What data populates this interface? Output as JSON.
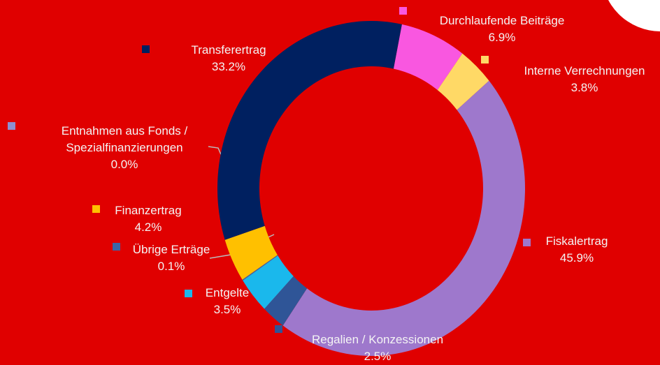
{
  "chart_data": {
    "type": "donut",
    "categories": [
      "Durchlaufende Beiträge",
      "Interne Verrechnungen",
      "Fiskalertrag",
      "Regalien / Konzessionen",
      "Entgelte",
      "Übrige Erträge",
      "Finanzertrag",
      "Entnahmen aus Fonds / Spezialfinanzierungen",
      "Transferertrag"
    ],
    "values": [
      6.9,
      3.8,
      45.9,
      2.5,
      3.5,
      0.1,
      4.2,
      0.0,
      33.2
    ],
    "value_labels": [
      "6.9%",
      "3.8%",
      "45.9%",
      "2.5%",
      "3.5%",
      "0.1%",
      "4.2%",
      "0.0%",
      "33.2%"
    ],
    "colors": [
      "#f957e0",
      "#ffd966",
      "#9e78cc",
      "#2f5597",
      "#1ab8ec",
      "#3a66a8",
      "#ffc000",
      "#8e8fd0",
      "#002060"
    ]
  }
}
